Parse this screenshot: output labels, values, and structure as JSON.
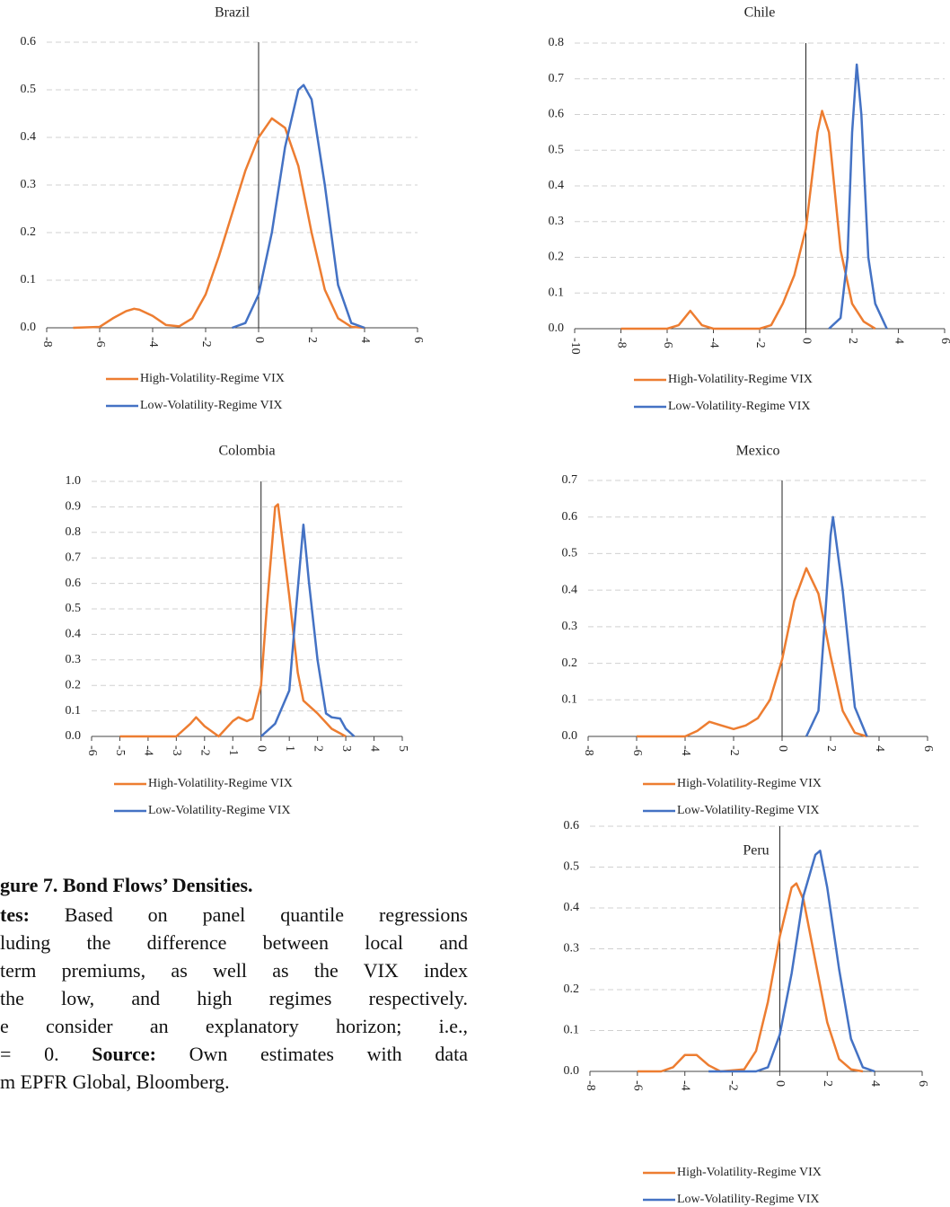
{
  "chart_data": [
    {
      "type": "line",
      "title": "Brazil",
      "grid": true,
      "xlim": [
        -8,
        6
      ],
      "xticks": [
        -8,
        -6,
        -4,
        -2,
        0,
        2,
        4,
        6
      ],
      "ylim": [
        0,
        0.6
      ],
      "yticks": [
        {
          "value": 0,
          "label": "0.0"
        },
        {
          "value": 0.1,
          "label": "0.1"
        },
        {
          "value": 0.2,
          "label": "0.2"
        },
        {
          "value": 0.3,
          "label": "0.3"
        },
        {
          "value": 0.4,
          "label": "0.4"
        },
        {
          "value": 0.5,
          "label": "0.5"
        },
        {
          "value": 0.6,
          "label": "0.6"
        }
      ],
      "series": [
        {
          "name": "High-Volatility-Regime VIX",
          "color": "#ed7d31",
          "x": [
            -7,
            -6,
            -5.5,
            -5,
            -4.7,
            -4.5,
            -4,
            -3.5,
            -3,
            -2.5,
            -2,
            -1.5,
            -1,
            -0.5,
            0,
            0.5,
            1,
            1.5,
            2,
            2.5,
            3,
            3.5,
            4
          ],
          "values": [
            0,
            0.002,
            0.02,
            0.035,
            0.04,
            0.038,
            0.025,
            0.006,
            0.003,
            0.02,
            0.07,
            0.15,
            0.24,
            0.33,
            0.4,
            0.44,
            0.42,
            0.34,
            0.2,
            0.08,
            0.02,
            0.002,
            0
          ]
        },
        {
          "name": "Low-Volatility-Regime VIX",
          "color": "#4472c4",
          "x": [
            -1,
            -0.5,
            0,
            0.5,
            1,
            1.5,
            1.7,
            2,
            2.5,
            3,
            3.5,
            4
          ],
          "values": [
            0,
            0.01,
            0.07,
            0.2,
            0.38,
            0.5,
            0.51,
            0.48,
            0.3,
            0.09,
            0.01,
            0
          ]
        }
      ]
    },
    {
      "type": "line",
      "title": "Chile",
      "grid": true,
      "xlim": [
        -10,
        6
      ],
      "xticks": [
        -10,
        -8,
        -6,
        -4,
        -2,
        0,
        2,
        4,
        6
      ],
      "ylim": [
        0,
        0.8
      ],
      "yticks": [
        {
          "value": 0,
          "label": "0.0"
        },
        {
          "value": 0.1,
          "label": "0.1"
        },
        {
          "value": 0.2,
          "label": "0.2"
        },
        {
          "value": 0.3,
          "label": "0.3"
        },
        {
          "value": 0.4,
          "label": "0.4"
        },
        {
          "value": 0.5,
          "label": "0.5"
        },
        {
          "value": 0.6,
          "label": "0.6"
        },
        {
          "value": 0.7,
          "label": "0.7"
        },
        {
          "value": 0.8,
          "label": "0.8"
        }
      ],
      "series": [
        {
          "name": "High-Volatility-Regime VIX",
          "color": "#ed7d31",
          "x": [
            -8,
            -6,
            -5.5,
            -5,
            -4.5,
            -4,
            -2,
            -1.5,
            -1,
            -0.5,
            0,
            0.5,
            0.7,
            1,
            1.5,
            2,
            2.5,
            3
          ],
          "values": [
            0,
            0,
            0.01,
            0.05,
            0.01,
            0,
            0,
            0.01,
            0.07,
            0.15,
            0.28,
            0.55,
            0.61,
            0.55,
            0.22,
            0.07,
            0.02,
            0
          ]
        },
        {
          "name": "Low-Volatility-Regime VIX",
          "color": "#4472c4",
          "x": [
            1,
            1.5,
            1.8,
            2,
            2.2,
            2.4,
            2.7,
            3,
            3.5
          ],
          "values": [
            0,
            0.03,
            0.2,
            0.55,
            0.74,
            0.6,
            0.2,
            0.07,
            0
          ]
        }
      ]
    },
    {
      "type": "line",
      "title": "Colombia",
      "grid": true,
      "xlim": [
        -6,
        5
      ],
      "xticks": [
        -6,
        -5,
        -4,
        -3,
        -2,
        -1,
        0,
        1,
        2,
        3,
        4,
        5
      ],
      "ylim": [
        0,
        1
      ],
      "yticks": [
        {
          "value": 0,
          "label": "0.0"
        },
        {
          "value": 0.1,
          "label": "0.1"
        },
        {
          "value": 0.2,
          "label": "0.2"
        },
        {
          "value": 0.3,
          "label": "0.3"
        },
        {
          "value": 0.4,
          "label": "0.4"
        },
        {
          "value": 0.5,
          "label": "0.5"
        },
        {
          "value": 0.6,
          "label": "0.6"
        },
        {
          "value": 0.7,
          "label": "0.7"
        },
        {
          "value": 0.8,
          "label": "0.8"
        },
        {
          "value": 0.9,
          "label": "0.9"
        },
        {
          "value": 1,
          "label": "1.0"
        }
      ],
      "series": [
        {
          "name": "High-Volatility-Regime VIX",
          "color": "#ed7d31",
          "x": [
            -5,
            -3,
            -2.5,
            -2.3,
            -2,
            -1.5,
            -1,
            -0.8,
            -0.5,
            -0.3,
            0,
            0.2,
            0.5,
            0.6,
            1,
            1.3,
            1.5,
            2,
            2.5,
            3
          ],
          "values": [
            0,
            0,
            0.05,
            0.075,
            0.04,
            0,
            0.06,
            0.075,
            0.06,
            0.07,
            0.2,
            0.5,
            0.9,
            0.91,
            0.55,
            0.25,
            0.14,
            0.09,
            0.03,
            0
          ]
        },
        {
          "name": "Low-Volatility-Regime VIX",
          "color": "#4472c4",
          "x": [
            0,
            0.5,
            1,
            1.2,
            1.5,
            1.7,
            2,
            2.3,
            2.5,
            2.8,
            3,
            3.3
          ],
          "values": [
            0,
            0.05,
            0.18,
            0.45,
            0.83,
            0.6,
            0.3,
            0.09,
            0.075,
            0.07,
            0.03,
            0
          ]
        }
      ]
    },
    {
      "type": "line",
      "title": "Mexico",
      "grid": true,
      "xlim": [
        -8,
        6
      ],
      "xticks": [
        -8,
        -6,
        -4,
        -2,
        0,
        2,
        4,
        6
      ],
      "ylim": [
        0,
        0.7
      ],
      "yticks": [
        {
          "value": 0,
          "label": "0.0"
        },
        {
          "value": 0.1,
          "label": "0.1"
        },
        {
          "value": 0.2,
          "label": "0.2"
        },
        {
          "value": 0.3,
          "label": "0.3"
        },
        {
          "value": 0.4,
          "label": "0.4"
        },
        {
          "value": 0.5,
          "label": "0.5"
        },
        {
          "value": 0.6,
          "label": "0.6"
        },
        {
          "value": 0.7,
          "label": "0.7"
        }
      ],
      "series": [
        {
          "name": "High-Volatility-Regime VIX",
          "color": "#ed7d31",
          "x": [
            -6,
            -4,
            -3.5,
            -3,
            -2.5,
            -2,
            -1.5,
            -1,
            -0.5,
            0,
            0.5,
            1,
            1.5,
            2,
            2.5,
            3,
            3.5
          ],
          "values": [
            0,
            0,
            0.015,
            0.04,
            0.03,
            0.02,
            0.03,
            0.05,
            0.1,
            0.21,
            0.37,
            0.46,
            0.39,
            0.22,
            0.07,
            0.01,
            0
          ]
        },
        {
          "name": "Low-Volatility-Regime VIX",
          "color": "#4472c4",
          "x": [
            1,
            1.5,
            1.8,
            2,
            2.1,
            2.5,
            3,
            3.5
          ],
          "values": [
            0,
            0.07,
            0.35,
            0.55,
            0.6,
            0.4,
            0.08,
            0
          ]
        }
      ]
    },
    {
      "type": "line",
      "title": "Peru",
      "grid": true,
      "xlim": [
        -8,
        6
      ],
      "xticks": [
        -8,
        -6,
        -4,
        -2,
        0,
        2,
        4,
        6
      ],
      "ylim": [
        0,
        0.6
      ],
      "yticks": [
        {
          "value": 0,
          "label": "0.0"
        },
        {
          "value": 0.1,
          "label": "0.1"
        },
        {
          "value": 0.2,
          "label": "0.2"
        },
        {
          "value": 0.3,
          "label": "0.3"
        },
        {
          "value": 0.4,
          "label": "0.4"
        },
        {
          "value": 0.5,
          "label": "0.5"
        },
        {
          "value": 0.6,
          "label": "0.6"
        }
      ],
      "series": [
        {
          "name": "High-Volatility-Regime VIX",
          "color": "#ed7d31",
          "x": [
            -6,
            -5,
            -4.5,
            -4,
            -3.5,
            -3,
            -2.5,
            -1.5,
            -1,
            -0.5,
            0,
            0.5,
            0.7,
            1,
            1.5,
            2,
            2.5,
            3,
            3.5
          ],
          "values": [
            0,
            0,
            0.01,
            0.04,
            0.04,
            0.015,
            0,
            0.005,
            0.05,
            0.17,
            0.33,
            0.45,
            0.46,
            0.42,
            0.27,
            0.12,
            0.03,
            0.005,
            0
          ]
        },
        {
          "name": "Low-Volatility-Regime VIX",
          "color": "#4472c4",
          "x": [
            -3,
            -1,
            -0.5,
            0,
            0.5,
            1,
            1.5,
            1.7,
            2,
            2.5,
            3,
            3.5,
            4
          ],
          "values": [
            0,
            0,
            0.01,
            0.09,
            0.24,
            0.43,
            0.53,
            0.54,
            0.45,
            0.25,
            0.08,
            0.01,
            0
          ]
        }
      ]
    }
  ],
  "caption": {
    "title": "gure 7. Bond Flows’ Densities.",
    "lines": [
      [
        {
          "text": "tes:",
          "bold": true
        },
        {
          "text": " Based on panel quantile regressions"
        }
      ],
      [
        {
          "text": "luding the difference between local and"
        }
      ],
      [
        {
          "text": "term premiums, as well as the VIX index"
        }
      ],
      [
        {
          "text": "the low, and high regimes respectively."
        }
      ],
      [
        {
          "text": "e consider an explanatory horizon; i.e.,"
        }
      ],
      [
        {
          "text": "= 0. "
        },
        {
          "text": "Source:",
          "bold": true
        },
        {
          "text": " Own estimates with data"
        }
      ],
      [
        {
          "text": "m EPFR Global, Bloomberg."
        }
      ]
    ]
  }
}
